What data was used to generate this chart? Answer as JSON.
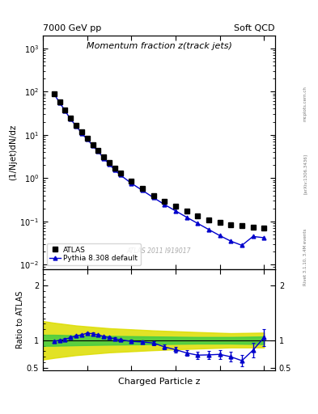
{
  "title_left": "7000 GeV pp",
  "title_right": "Soft QCD",
  "plot_title": "Momentum fraction z(track jets)",
  "ylabel_main": "(1/Njet)dN/dz",
  "ylabel_ratio": "Ratio to ATLAS",
  "xlabel": "Charged Particle z",
  "right_label": "Rivet 3.1.10, 3.4M events",
  "right_label2": "[arXiv:1306.3436]",
  "right_label3": "mcplots.cern.ch",
  "watermark": "ATLAS 2011 I919017",
  "atlas_x": [
    0.05,
    0.075,
    0.1,
    0.125,
    0.15,
    0.175,
    0.2,
    0.225,
    0.25,
    0.275,
    0.3,
    0.325,
    0.35,
    0.4,
    0.45,
    0.5,
    0.55,
    0.6,
    0.65,
    0.7,
    0.75,
    0.8,
    0.85,
    0.9,
    0.95,
    1.0
  ],
  "atlas_y": [
    90.0,
    58.0,
    37.0,
    24.0,
    16.5,
    11.5,
    8.2,
    5.9,
    4.3,
    3.1,
    2.3,
    1.7,
    1.3,
    0.85,
    0.58,
    0.4,
    0.29,
    0.22,
    0.17,
    0.135,
    0.11,
    0.095,
    0.085,
    0.08,
    0.075,
    0.07
  ],
  "pythia_x": [
    0.05,
    0.075,
    0.1,
    0.125,
    0.15,
    0.175,
    0.2,
    0.225,
    0.25,
    0.275,
    0.3,
    0.325,
    0.35,
    0.4,
    0.45,
    0.5,
    0.55,
    0.6,
    0.65,
    0.7,
    0.75,
    0.8,
    0.85,
    0.9,
    0.95,
    1.0
  ],
  "pythia_y": [
    88.0,
    56.0,
    36.0,
    23.0,
    16.0,
    11.0,
    7.9,
    5.7,
    4.1,
    2.9,
    2.1,
    1.55,
    1.18,
    0.76,
    0.52,
    0.355,
    0.245,
    0.175,
    0.125,
    0.09,
    0.065,
    0.047,
    0.035,
    0.028,
    0.045,
    0.042
  ],
  "ratio_x": [
    0.05,
    0.075,
    0.1,
    0.125,
    0.15,
    0.175,
    0.2,
    0.225,
    0.25,
    0.275,
    0.3,
    0.325,
    0.35,
    0.4,
    0.45,
    0.5,
    0.55,
    0.6,
    0.65,
    0.7,
    0.75,
    0.8,
    0.85,
    0.9,
    0.95,
    1.0
  ],
  "ratio_y": [
    0.98,
    1.0,
    1.02,
    1.05,
    1.08,
    1.1,
    1.13,
    1.12,
    1.1,
    1.07,
    1.05,
    1.03,
    1.01,
    0.98,
    0.97,
    0.95,
    0.88,
    0.83,
    0.77,
    0.73,
    0.735,
    0.745,
    0.7,
    0.63,
    0.82,
    1.05
  ],
  "ratio_err": [
    0.02,
    0.02,
    0.02,
    0.02,
    0.02,
    0.02,
    0.02,
    0.02,
    0.02,
    0.02,
    0.02,
    0.02,
    0.025,
    0.03,
    0.03,
    0.04,
    0.045,
    0.05,
    0.055,
    0.065,
    0.07,
    0.08,
    0.09,
    0.1,
    0.13,
    0.15
  ],
  "green_band_x": [
    0.0,
    0.05,
    0.15,
    0.3,
    0.5,
    0.7,
    0.85,
    1.0
  ],
  "green_band_lo": [
    0.9,
    0.9,
    0.91,
    0.92,
    0.93,
    0.94,
    0.94,
    0.93
  ],
  "green_band_hi": [
    1.1,
    1.1,
    1.09,
    1.08,
    1.07,
    1.06,
    1.06,
    1.07
  ],
  "yellow_band_x": [
    0.0,
    0.05,
    0.15,
    0.3,
    0.5,
    0.7,
    0.85,
    1.0
  ],
  "yellow_band_lo": [
    0.65,
    0.68,
    0.73,
    0.78,
    0.82,
    0.85,
    0.87,
    0.87
  ],
  "yellow_band_hi": [
    1.35,
    1.32,
    1.27,
    1.22,
    1.18,
    1.15,
    1.13,
    1.14
  ],
  "atlas_color": "#000000",
  "pythia_color": "#0000cc",
  "ylim_main": [
    0.008,
    2000
  ],
  "ylim_ratio": [
    0.45,
    2.3
  ],
  "xlim": [
    0.0,
    1.05
  ]
}
